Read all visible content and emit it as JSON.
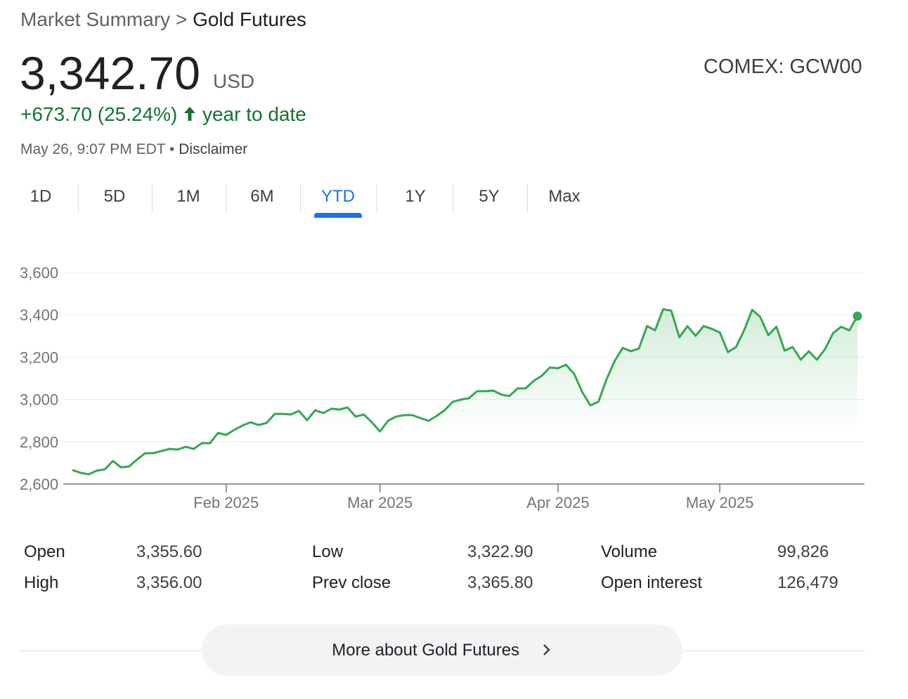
{
  "header": {
    "breadcrumb": [
      "Market Summary",
      ">",
      "Gold Futures"
    ],
    "price": "3,342.70",
    "currency": "USD",
    "change": "+673.70 (25.24%)",
    "change_period": "year to date",
    "timestamp": "May 26, 9:07 PM EDT",
    "separator": "•",
    "disclaimer": "Disclaimer",
    "ticker": "COMEX: GCW00"
  },
  "tabs": {
    "items": [
      "1D",
      "5D",
      "1M",
      "6M",
      "YTD",
      "1Y",
      "5Y",
      "Max"
    ],
    "active": 4
  },
  "chart_data": {
    "type": "line",
    "color": "#34a853",
    "grid": true,
    "ylim": [
      2600,
      3600
    ],
    "yticks": [
      {
        "value": 2600,
        "label": "2,600"
      },
      {
        "value": 2800,
        "label": "2,800"
      },
      {
        "value": 3000,
        "label": "3,000"
      },
      {
        "value": 3200,
        "label": "3,200"
      },
      {
        "value": 3400,
        "label": "3,400"
      },
      {
        "value": 3600,
        "label": "3,600"
      }
    ],
    "categories": [
      null,
      null,
      null,
      null,
      null,
      null,
      null,
      null,
      null,
      null,
      null,
      null,
      null,
      null,
      null,
      null,
      null,
      null,
      null,
      "Feb 2025",
      null,
      null,
      null,
      null,
      null,
      null,
      null,
      null,
      null,
      null,
      null,
      null,
      null,
      null,
      null,
      null,
      null,
      null,
      "Mar 2025",
      null,
      null,
      null,
      null,
      null,
      null,
      null,
      null,
      null,
      null,
      null,
      null,
      null,
      null,
      null,
      null,
      null,
      null,
      null,
      null,
      null,
      "Apr 2025",
      null,
      null,
      null,
      null,
      null,
      null,
      null,
      null,
      null,
      null,
      null,
      null,
      null,
      null,
      null,
      null,
      null,
      null,
      null,
      "May 2025",
      null,
      null,
      null,
      null,
      null,
      null,
      null,
      null,
      null,
      null,
      null,
      null,
      null,
      null,
      null,
      null,
      null
    ],
    "values": [
      2666,
      2653,
      2646,
      2663,
      2669,
      2709,
      2679,
      2683,
      2716,
      2746,
      2746,
      2756,
      2766,
      2763,
      2776,
      2766,
      2793,
      2793,
      2842,
      2832,
      2856,
      2876,
      2892,
      2879,
      2889,
      2932,
      2932,
      2929,
      2946,
      2902,
      2949,
      2936,
      2956,
      2952,
      2962,
      2919,
      2929,
      2892,
      2849,
      2899,
      2919,
      2926,
      2926,
      2912,
      2899,
      2922,
      2949,
      2989,
      2999,
      3006,
      3039,
      3039,
      3042,
      3023,
      3016,
      3052,
      3052,
      3088,
      3112,
      3151,
      3148,
      3164,
      3121,
      3035,
      2972,
      2989,
      3095,
      3181,
      3244,
      3228,
      3241,
      3347,
      3327,
      3427,
      3420,
      3294,
      3347,
      3301,
      3347,
      3334,
      3317,
      3224,
      3248,
      3327,
      3424,
      3390,
      3304,
      3344,
      3231,
      3248,
      3188,
      3228,
      3188,
      3238,
      3314,
      3344,
      3327,
      3394
    ]
  },
  "stats": {
    "rows": [
      [
        "Open",
        "3,355.60",
        "Low",
        "3,322.90",
        "Volume",
        "99,826"
      ],
      [
        "High",
        "3,356.00",
        "Prev close",
        "3,365.80",
        "Open interest",
        "126,479"
      ]
    ]
  },
  "button": {
    "label": "More about Gold Futures"
  }
}
